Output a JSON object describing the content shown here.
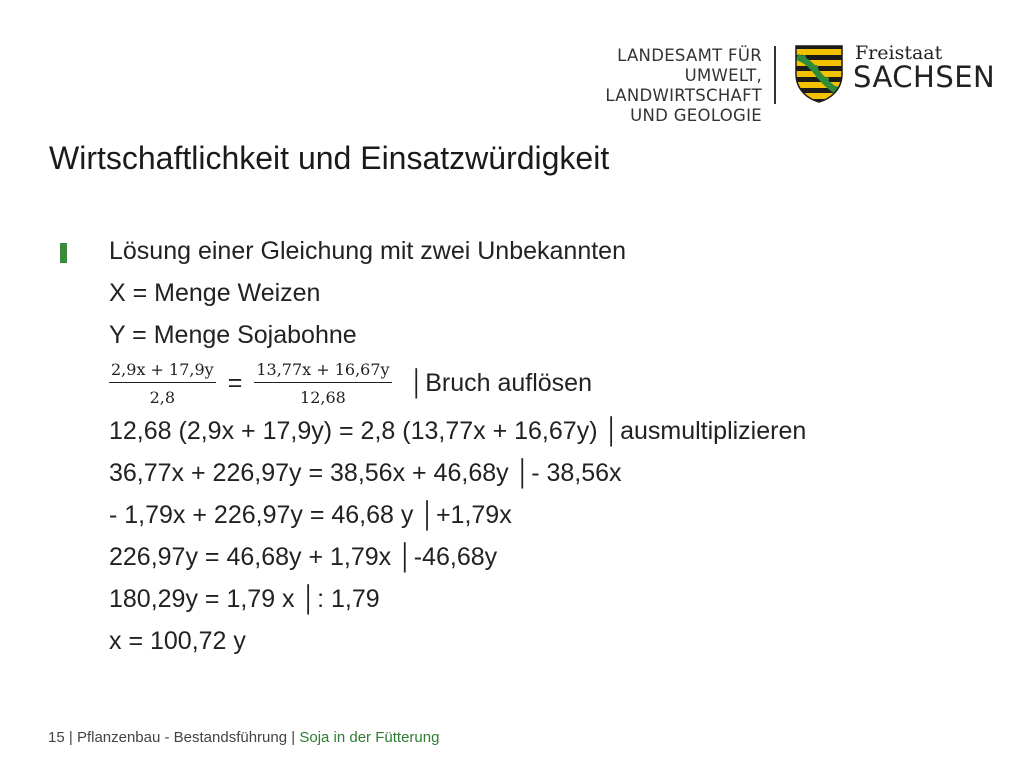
{
  "header": {
    "agency_lines": [
      "LANDESAMT FÜR UMWELT,",
      "LANDWIRTSCHAFT",
      "UND GEOLOGIE"
    ],
    "state_line1": "Freistaat",
    "state_line2": "SACHSEN"
  },
  "title": "Wirtschaftlichkeit und Einsatzwürdigkeit",
  "content": {
    "intro": "Lösung einer Gleichung mit zwei Unbekannten",
    "def_x": "X = Menge Weizen",
    "def_y": "Y = Menge Sojabohne",
    "fraction_equation": {
      "left_num": "2,9x + 17,9y",
      "left_den": "2,8",
      "equals": "=",
      "right_num": "13,77x + 16,67y",
      "right_den": "12,68",
      "note": "│Bruch auflösen"
    },
    "steps": [
      "12,68 (2,9x + 17,9y) = 2,8 (13,77x + 16,67y) │ausmultiplizieren",
      "36,77x + 226,97y = 38,56x + 46,68y │- 38,56x",
      "- 1,79x + 226,97y = 46,68 y │+1,79x",
      "226,97y = 46,68y + 1,79x │-46,68y",
      "180,29y = 1,79 x │: 1,79",
      "x = 100,72 y"
    ]
  },
  "footer": {
    "page": "15",
    "separator": "|",
    "section": "Pflanzenbau - Bestandsführung",
    "topic": "Soja in der Fütterung"
  },
  "colors": {
    "accent_green": "#3a8a3a",
    "crest_yellow": "#f2c200",
    "crest_black": "#1a1a1a",
    "crest_green": "#2e8b3a"
  }
}
